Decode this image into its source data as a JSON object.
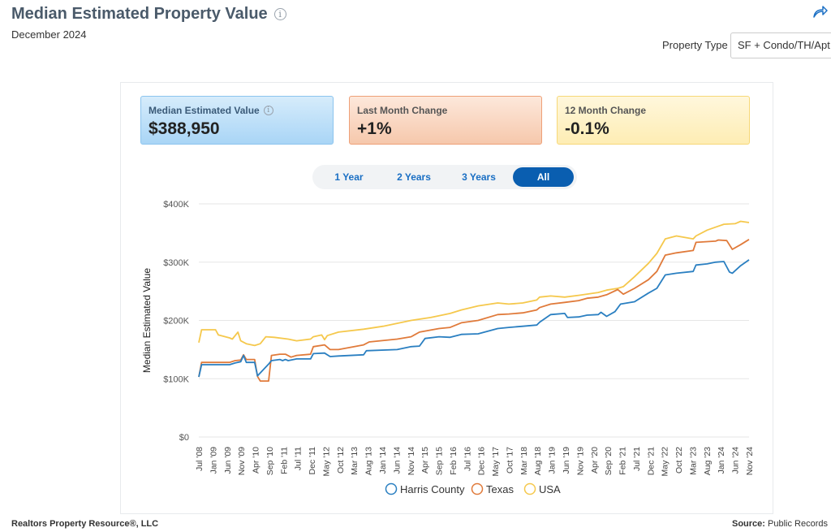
{
  "header": {
    "title": "Median Estimated Property Value",
    "subtitle": "December 2024",
    "property_type_label": "Property Type",
    "property_type_value": "SF + Condo/TH/Apt"
  },
  "cards": [
    {
      "label": "Median Estimated Value",
      "value": "$388,950"
    },
    {
      "label": "Last Month Change",
      "value": "+1%"
    },
    {
      "label": "12 Month Change",
      "value": "-0.1%"
    }
  ],
  "tabs": [
    "1 Year",
    "2 Years",
    "3 Years",
    "All"
  ],
  "active_tab": "All",
  "footer": {
    "left": "Realtors Property Resource®, LLC",
    "source_label": "Source:",
    "source_value": "Public Records"
  },
  "colors": {
    "harris": "#2a7fc1",
    "texas": "#e07a3a",
    "usa": "#f5c84c"
  },
  "chart_data": {
    "type": "line",
    "title": "",
    "ylabel": "Median Estimated Value",
    "ylim": [
      0,
      400000
    ],
    "yticks": [
      0,
      100000,
      200000,
      300000,
      400000
    ],
    "ytick_labels": [
      "$0",
      "$100K",
      "$200K",
      "$300K",
      "$400K"
    ],
    "x_start": "Jul '08",
    "x_end": "Dec '24",
    "xtick_labels": [
      "Jul '08",
      "Jan '09",
      "Jun '09",
      "Nov '09",
      "Apr '10",
      "Sep '10",
      "Feb '11",
      "Jul '11",
      "Dec '11",
      "May '12",
      "Oct '12",
      "Mar '13",
      "Aug '13",
      "Jan '14",
      "Jun '14",
      "Nov '14",
      "Apr '15",
      "Sep '15",
      "Feb '16",
      "Jul '16",
      "Dec '16",
      "May '17",
      "Oct '17",
      "Mar '18",
      "Aug '18",
      "Jan '19",
      "Jun '19",
      "Nov '19",
      "Apr '20",
      "Sep '20",
      "Feb '21",
      "Jul '21",
      "Dec '21",
      "May '22",
      "Oct '22",
      "Mar '23",
      "Aug '23",
      "Jan '24",
      "Jun '24",
      "Nov '24"
    ],
    "legend": [
      "Harris County",
      "Texas",
      "USA"
    ],
    "legend_position": "bottom",
    "series": [
      {
        "name": "Harris County",
        "points": [
          [
            "2008-07",
            103000
          ],
          [
            "2008-08",
            124000
          ],
          [
            "2009-01",
            124000
          ],
          [
            "2009-06",
            124000
          ],
          [
            "2009-08",
            127000
          ],
          [
            "2009-10",
            129000
          ],
          [
            "2009-11",
            140000
          ],
          [
            "2009-12",
            128000
          ],
          [
            "2010-03",
            128000
          ],
          [
            "2010-04",
            105000
          ],
          [
            "2010-08",
            125000
          ],
          [
            "2010-09",
            131000
          ],
          [
            "2010-12",
            133000
          ],
          [
            "2011-01",
            131000
          ],
          [
            "2011-02",
            133000
          ],
          [
            "2011-03",
            131000
          ],
          [
            "2011-06",
            134000
          ],
          [
            "2011-11",
            134000
          ],
          [
            "2011-12",
            143000
          ],
          [
            "2012-04",
            144000
          ],
          [
            "2012-06",
            138000
          ],
          [
            "2012-09",
            139000
          ],
          [
            "2013-06",
            141000
          ],
          [
            "2013-07",
            148000
          ],
          [
            "2014-06",
            150000
          ],
          [
            "2014-11",
            155000
          ],
          [
            "2015-02",
            156000
          ],
          [
            "2015-04",
            169000
          ],
          [
            "2015-09",
            172000
          ],
          [
            "2016-01",
            171000
          ],
          [
            "2016-05",
            176000
          ],
          [
            "2016-11",
            177000
          ],
          [
            "2017-06",
            186000
          ],
          [
            "2017-10",
            188000
          ],
          [
            "2018-03",
            190000
          ],
          [
            "2018-08",
            192000
          ],
          [
            "2018-09",
            197000
          ],
          [
            "2019-01",
            210000
          ],
          [
            "2019-06",
            212000
          ],
          [
            "2019-07",
            205000
          ],
          [
            "2019-11",
            206000
          ],
          [
            "2020-02",
            209000
          ],
          [
            "2020-06",
            210000
          ],
          [
            "2020-07",
            214000
          ],
          [
            "2020-09",
            207000
          ],
          [
            "2020-12",
            215000
          ],
          [
            "2021-02",
            228000
          ],
          [
            "2021-07",
            232000
          ],
          [
            "2021-12",
            247000
          ],
          [
            "2022-03",
            255000
          ],
          [
            "2022-06",
            278000
          ],
          [
            "2022-10",
            281000
          ],
          [
            "2023-04",
            284000
          ],
          [
            "2023-05",
            295000
          ],
          [
            "2023-09",
            297000
          ],
          [
            "2023-12",
            300000
          ],
          [
            "2024-03",
            301000
          ],
          [
            "2024-05",
            283000
          ],
          [
            "2024-06",
            281000
          ],
          [
            "2024-09",
            294000
          ],
          [
            "2024-12",
            304000
          ]
        ]
      },
      {
        "name": "Texas",
        "points": [
          [
            "2008-07",
            103000
          ],
          [
            "2008-08",
            128000
          ],
          [
            "2009-01",
            128000
          ],
          [
            "2009-06",
            128000
          ],
          [
            "2009-08",
            131000
          ],
          [
            "2009-10",
            132000
          ],
          [
            "2009-11",
            141000
          ],
          [
            "2009-12",
            133000
          ],
          [
            "2010-03",
            133000
          ],
          [
            "2010-04",
            104000
          ],
          [
            "2010-05",
            96000
          ],
          [
            "2010-08",
            96000
          ],
          [
            "2010-09",
            140000
          ],
          [
            "2010-12",
            142000
          ],
          [
            "2011-02",
            142000
          ],
          [
            "2011-04",
            137000
          ],
          [
            "2011-06",
            140000
          ],
          [
            "2011-11",
            142000
          ],
          [
            "2011-12",
            155000
          ],
          [
            "2012-04",
            158000
          ],
          [
            "2012-06",
            150000
          ],
          [
            "2012-09",
            150000
          ],
          [
            "2013-06",
            158000
          ],
          [
            "2013-08",
            163000
          ],
          [
            "2014-06",
            168000
          ],
          [
            "2014-11",
            172000
          ],
          [
            "2015-02",
            180000
          ],
          [
            "2015-09",
            186000
          ],
          [
            "2016-01",
            188000
          ],
          [
            "2016-05",
            196000
          ],
          [
            "2016-11",
            200000
          ],
          [
            "2017-06",
            210000
          ],
          [
            "2017-10",
            211000
          ],
          [
            "2018-03",
            213000
          ],
          [
            "2018-08",
            218000
          ],
          [
            "2018-09",
            222000
          ],
          [
            "2019-01",
            228000
          ],
          [
            "2019-06",
            231000
          ],
          [
            "2019-11",
            234000
          ],
          [
            "2020-02",
            238000
          ],
          [
            "2020-06",
            240000
          ],
          [
            "2020-09",
            244000
          ],
          [
            "2021-01",
            253000
          ],
          [
            "2021-03",
            245000
          ],
          [
            "2021-07",
            255000
          ],
          [
            "2021-12",
            270000
          ],
          [
            "2022-03",
            284000
          ],
          [
            "2022-06",
            312000
          ],
          [
            "2022-10",
            316000
          ],
          [
            "2023-04",
            320000
          ],
          [
            "2023-05",
            334000
          ],
          [
            "2023-12",
            336000
          ],
          [
            "2024-01",
            338000
          ],
          [
            "2024-04",
            337000
          ],
          [
            "2024-06",
            322000
          ],
          [
            "2024-09",
            330000
          ],
          [
            "2024-12",
            339000
          ]
        ]
      },
      {
        "name": "USA",
        "points": [
          [
            "2008-07",
            162000
          ],
          [
            "2008-08",
            184000
          ],
          [
            "2009-01",
            184000
          ],
          [
            "2009-02",
            175000
          ],
          [
            "2009-06",
            170000
          ],
          [
            "2009-07",
            168000
          ],
          [
            "2009-09",
            180000
          ],
          [
            "2009-10",
            165000
          ],
          [
            "2009-12",
            160000
          ],
          [
            "2010-03",
            157000
          ],
          [
            "2010-05",
            160000
          ],
          [
            "2010-07",
            172000
          ],
          [
            "2010-10",
            171000
          ],
          [
            "2011-03",
            168000
          ],
          [
            "2011-06",
            165000
          ],
          [
            "2011-11",
            168000
          ],
          [
            "2011-12",
            172000
          ],
          [
            "2012-03",
            175000
          ],
          [
            "2012-04",
            167000
          ],
          [
            "2012-05",
            174000
          ],
          [
            "2012-09",
            180000
          ],
          [
            "2013-06",
            185000
          ],
          [
            "2014-01",
            190000
          ],
          [
            "2014-11",
            200000
          ],
          [
            "2015-06",
            205000
          ],
          [
            "2015-09",
            208000
          ],
          [
            "2016-01",
            212000
          ],
          [
            "2016-05",
            218000
          ],
          [
            "2016-11",
            225000
          ],
          [
            "2017-06",
            230000
          ],
          [
            "2017-10",
            228000
          ],
          [
            "2018-03",
            230000
          ],
          [
            "2018-08",
            235000
          ],
          [
            "2018-09",
            240000
          ],
          [
            "2019-01",
            242000
          ],
          [
            "2019-06",
            240000
          ],
          [
            "2019-11",
            243000
          ],
          [
            "2020-06",
            248000
          ],
          [
            "2020-09",
            252000
          ],
          [
            "2021-01",
            255000
          ],
          [
            "2021-03",
            258000
          ],
          [
            "2021-07",
            275000
          ],
          [
            "2021-12",
            298000
          ],
          [
            "2022-03",
            315000
          ],
          [
            "2022-06",
            340000
          ],
          [
            "2022-10",
            345000
          ],
          [
            "2023-04",
            340000
          ],
          [
            "2023-05",
            345000
          ],
          [
            "2023-09",
            355000
          ],
          [
            "2023-12",
            360000
          ],
          [
            "2024-03",
            365000
          ],
          [
            "2024-07",
            366000
          ],
          [
            "2024-09",
            370000
          ],
          [
            "2024-12",
            368000
          ]
        ]
      }
    ]
  }
}
